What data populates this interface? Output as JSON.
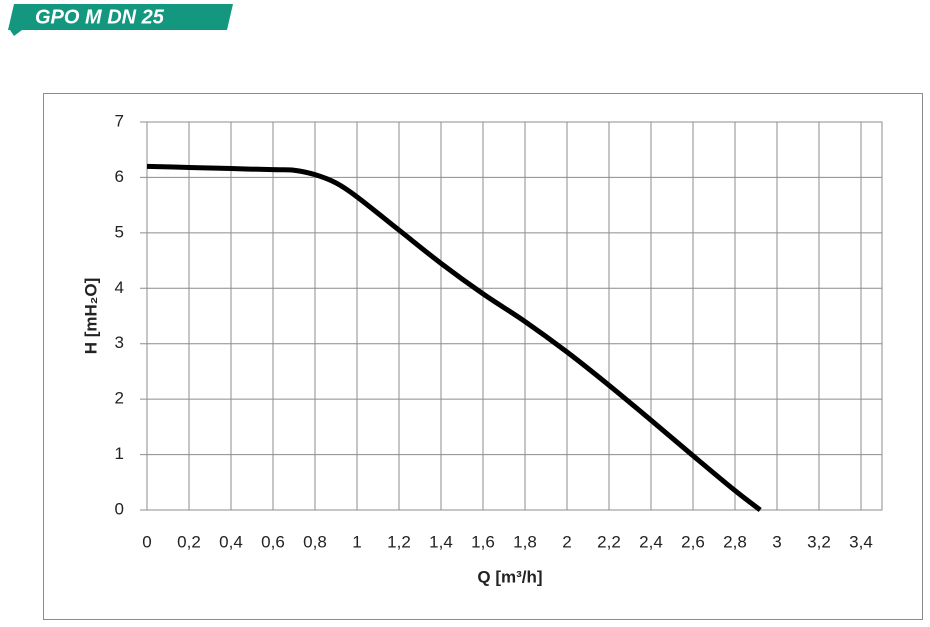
{
  "chart_data": {
    "type": "line",
    "title": "GPO M DN 25",
    "x_label": "Q [m³/h]",
    "y_label": "H [mH₂O]",
    "x": [
      0,
      0.2,
      0.4,
      0.6,
      0.7,
      0.8,
      0.9,
      1.0,
      1.2,
      1.4,
      1.6,
      1.8,
      2.0,
      2.2,
      2.4,
      2.6,
      2.8,
      2.92
    ],
    "series": [
      {
        "color": "#000000",
        "values": [
          6.2,
          6.18,
          6.16,
          6.14,
          6.13,
          6.05,
          5.9,
          5.65,
          5.05,
          4.45,
          3.9,
          3.4,
          2.85,
          2.25,
          1.62,
          0.98,
          0.35,
          0
        ]
      }
    ],
    "xlim": [
      0,
      3.5
    ],
    "ylim": [
      0,
      7
    ],
    "xticks": [
      0,
      {
        "value": 0.2,
        "label": "0,2"
      },
      {
        "value": 0.4,
        "label": "0,4"
      },
      {
        "value": 0.6,
        "label": "0,6"
      },
      {
        "value": 0.8,
        "label": "0,8"
      },
      1,
      {
        "value": 1.2,
        "label": "1,2"
      },
      {
        "value": 1.4,
        "label": "1,4"
      },
      {
        "value": 1.6,
        "label": "1,6"
      },
      {
        "value": 1.8,
        "label": "1,8"
      },
      2,
      {
        "value": 2.2,
        "label": "2,2"
      },
      {
        "value": 2.4,
        "label": "2,4"
      },
      {
        "value": 2.6,
        "label": "2,6"
      },
      {
        "value": 2.8,
        "label": "2,8"
      },
      3,
      {
        "value": 3.2,
        "label": "3,2"
      },
      {
        "value": 3.4,
        "label": "3,4"
      }
    ],
    "yticks": [
      0,
      1,
      2,
      3,
      4,
      5,
      6,
      7
    ],
    "grid": true
  }
}
